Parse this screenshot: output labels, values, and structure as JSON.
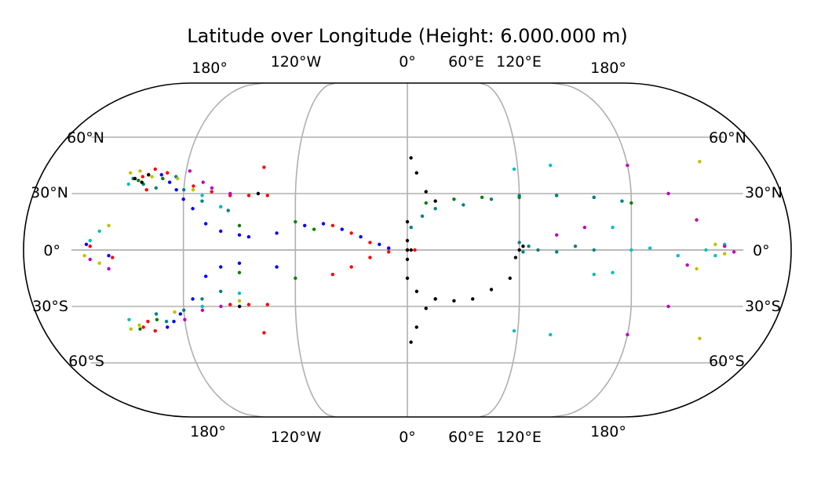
{
  "chart_data": {
    "type": "scatter",
    "title": "Latitude over Longitude (Height: 6.000.000 m)",
    "projection": "pseudocylindrical (rounded ends), global extent",
    "xlim": [
      -180,
      180
    ],
    "ylim": [
      -90,
      90
    ],
    "grid": true,
    "meridians": [
      -180,
      -120,
      -60,
      0,
      60,
      120
    ],
    "parallels": [
      -60,
      -30,
      0,
      30,
      60
    ],
    "top_tick_labels": [
      "180°",
      "120°W",
      "0°",
      "60°E",
      "120°E",
      "180°"
    ],
    "bottom_tick_labels": [
      "180°",
      "120°W",
      "0°",
      "60°E",
      "120°E",
      "180°"
    ],
    "left_tick_labels": [
      "60°N",
      "30°N",
      "0°",
      "30°S",
      "60°S"
    ],
    "right_tick_labels": [
      "60°N",
      "30°N",
      "0°",
      "30°S",
      "60°S"
    ],
    "colors": [
      "#0000ff",
      "#ff0000",
      "#008000",
      "#008080",
      "#00bfbf",
      "#bfbf00",
      "#bf00bf",
      "#000000"
    ],
    "marker_size": 2.2,
    "series": [
      {
        "color": "#ff0000",
        "points": [
          [
            -140,
            32
          ],
          [
            -143,
            39
          ],
          [
            -137,
            43
          ],
          [
            -130,
            41
          ],
          [
            -115,
            34
          ],
          [
            -105,
            31
          ],
          [
            -95,
            29
          ],
          [
            -85,
            29
          ],
          [
            -75,
            29
          ],
          [
            -78,
            44
          ],
          [
            -40,
            13
          ],
          [
            -30,
            9
          ],
          [
            -20,
            4
          ],
          [
            -10,
            1
          ],
          [
            0,
            0
          ],
          [
            4,
            0
          ],
          [
            -40,
            -13
          ],
          [
            -30,
            -9
          ],
          [
            -20,
            -4
          ],
          [
            -10,
            -1
          ],
          [
            -75,
            -29
          ],
          [
            -85,
            -29
          ],
          [
            -95,
            -29
          ],
          [
            -78,
            -44
          ],
          [
            -140,
            -38
          ],
          [
            -143,
            -41
          ],
          [
            -137,
            -43
          ],
          [
            -158,
            -4
          ],
          [
            -170,
            2
          ]
        ]
      },
      {
        "color": "#0000ff",
        "points": [
          [
            -133,
            40
          ],
          [
            -128,
            36
          ],
          [
            -124,
            32
          ],
          [
            -120,
            27
          ],
          [
            -115,
            22
          ],
          [
            -108,
            14
          ],
          [
            -100,
            10
          ],
          [
            -90,
            8
          ],
          [
            -85,
            7
          ],
          [
            -70,
            9
          ],
          [
            -55,
            13
          ],
          [
            -45,
            14
          ],
          [
            -35,
            11
          ],
          [
            -25,
            7
          ],
          [
            -15,
            3
          ],
          [
            -10,
            1
          ],
          [
            -130,
            -41
          ],
          [
            -126,
            -38
          ],
          [
            -122,
            -34
          ],
          [
            -115,
            -26
          ],
          [
            -108,
            -14
          ],
          [
            -100,
            -9
          ],
          [
            -90,
            -7
          ],
          [
            -70,
            -9
          ],
          [
            -172,
            3
          ],
          [
            -160,
            -3
          ]
        ]
      },
      {
        "color": "#008000",
        "points": [
          [
            -145,
            37
          ],
          [
            -140,
            40
          ],
          [
            -132,
            38
          ],
          [
            -90,
            13
          ],
          [
            -60,
            15
          ],
          [
            -50,
            11
          ],
          [
            10,
            25
          ],
          [
            25,
            27
          ],
          [
            40,
            28
          ],
          [
            60,
            28
          ],
          [
            80,
            29
          ],
          [
            100,
            28
          ],
          [
            120,
            25
          ],
          [
            -135,
            -37
          ],
          [
            -145,
            -42
          ],
          [
            -90,
            -12
          ],
          [
            -60,
            -15
          ]
        ]
      },
      {
        "color": "#008080",
        "points": [
          [
            -148,
            38
          ],
          [
            -142,
            35
          ],
          [
            -135,
            33
          ],
          [
            -125,
            39
          ],
          [
            -120,
            32
          ],
          [
            -110,
            26
          ],
          [
            -100,
            23
          ],
          [
            -96,
            21
          ],
          [
            2,
            12
          ],
          [
            8,
            18
          ],
          [
            15,
            22
          ],
          [
            30,
            24
          ],
          [
            45,
            27
          ],
          [
            60,
            29
          ],
          [
            80,
            29
          ],
          [
            100,
            28
          ],
          [
            115,
            26
          ],
          [
            60,
            4
          ],
          [
            62,
            -1
          ],
          [
            65,
            2
          ],
          [
            70,
            0
          ],
          [
            80,
            -1
          ],
          [
            90,
            2
          ],
          [
            100,
            0
          ],
          [
            -135,
            -34
          ],
          [
            -130,
            -38
          ],
          [
            -120,
            -32
          ],
          [
            -110,
            -26
          ],
          [
            -100,
            -22
          ]
        ]
      },
      {
        "color": "#00bfbf",
        "points": [
          [
            -165,
            10
          ],
          [
            -170,
            5
          ],
          [
            -150,
            35
          ],
          [
            -110,
            29
          ],
          [
            -100,
            23
          ],
          [
            -90,
            -23
          ],
          [
            -80,
            30
          ],
          [
            58,
            43
          ],
          [
            78,
            45
          ],
          [
            110,
            -12
          ],
          [
            120,
            0
          ],
          [
            130,
            1
          ],
          [
            145,
            -3
          ],
          [
            160,
            0
          ],
          [
            165,
            -3
          ],
          [
            170,
            3
          ],
          [
            -150,
            -37
          ],
          [
            -110,
            -30
          ],
          [
            58,
            -43
          ],
          [
            78,
            -45
          ],
          [
            110,
            12
          ],
          [
            100,
            -13
          ]
        ]
      },
      {
        "color": "#bfbf00",
        "points": [
          [
            -150,
            41
          ],
          [
            -145,
            42
          ],
          [
            -138,
            39
          ],
          [
            -124,
            38
          ],
          [
            -115,
            32
          ],
          [
            -90,
            -27
          ],
          [
            -160,
            13
          ],
          [
            -165,
            -7
          ],
          [
            -173,
            -3
          ],
          [
            -150,
            -42
          ],
          [
            -145,
            -40
          ],
          [
            -125,
            -33
          ],
          [
            155,
            -10
          ],
          [
            160,
            47
          ],
          [
            160,
            -47
          ],
          [
            165,
            3
          ],
          [
            170,
            -2
          ]
        ]
      },
      {
        "color": "#bf00bf",
        "points": [
          [
            -118,
            42
          ],
          [
            -110,
            36
          ],
          [
            -105,
            33
          ],
          [
            -95,
            30
          ],
          [
            -120,
            -37
          ],
          [
            -110,
            -32
          ],
          [
            -100,
            -30
          ],
          [
            -160,
            -10
          ],
          [
            -170,
            -5
          ],
          [
            80,
            8
          ],
          [
            95,
            12
          ],
          [
            120,
            45
          ],
          [
            140,
            30
          ],
          [
            155,
            16
          ],
          [
            170,
            2
          ],
          [
            175,
            -1
          ],
          [
            150,
            -8
          ],
          [
            120,
            -45
          ],
          [
            140,
            -30
          ]
        ]
      },
      {
        "color": "#000000",
        "points": [
          [
            -140,
            40
          ],
          [
            -147,
            38
          ],
          [
            -143,
            36
          ],
          [
            2,
            49
          ],
          [
            5,
            41
          ],
          [
            10,
            31
          ],
          [
            15,
            26
          ],
          [
            0,
            15
          ],
          [
            0,
            5
          ],
          [
            0,
            0
          ],
          [
            2,
            0
          ],
          [
            0,
            -5
          ],
          [
            0,
            -15
          ],
          [
            5,
            -22
          ],
          [
            15,
            -26
          ],
          [
            25,
            -27
          ],
          [
            35,
            -26
          ],
          [
            45,
            -21
          ],
          [
            55,
            -15
          ],
          [
            58,
            -4
          ],
          [
            60,
            0
          ],
          [
            62,
            2
          ],
          [
            2,
            -49
          ],
          [
            5,
            -41
          ],
          [
            10,
            -31
          ],
          [
            15,
            -26
          ],
          [
            -90,
            -30
          ],
          [
            -80,
            30
          ]
        ]
      }
    ]
  }
}
